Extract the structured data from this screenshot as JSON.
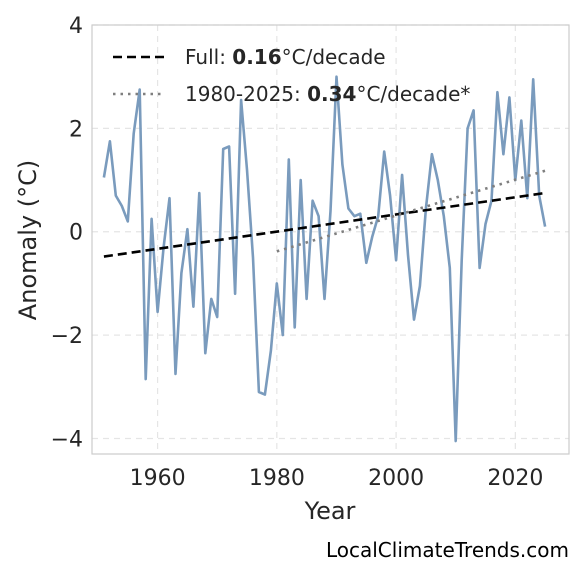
{
  "chart_data": {
    "type": "line",
    "xlabel": "Year",
    "ylabel": "Anomaly (°C)",
    "xlim": [
      1949,
      2029
    ],
    "ylim": [
      -4.3,
      4.0
    ],
    "x_ticks": [
      1960,
      1980,
      2000,
      2020
    ],
    "y_ticks": [
      -4,
      -2,
      0,
      2,
      4
    ],
    "y_tick_labels": [
      "−4",
      "−2",
      "0",
      "2",
      "4"
    ],
    "grid": true,
    "legend_position": "top-left",
    "colors": {
      "series": "#7a9bbd",
      "full_trend": "#000000",
      "recent_trend": "#7f7f7f",
      "grid": "#e5e5e5",
      "spine": "#cccccc"
    },
    "series": [
      {
        "x": [
          1951,
          1952,
          1953,
          1954,
          1955,
          1956,
          1957,
          1958,
          1959,
          1960,
          1961,
          1962,
          1963,
          1964,
          1965,
          1966,
          1967,
          1968,
          1969,
          1970,
          1971,
          1972,
          1973,
          1974,
          1975,
          1976,
          1977,
          1978,
          1979,
          1980,
          1981,
          1982,
          1983,
          1984,
          1985,
          1986,
          1987,
          1988,
          1989,
          1990,
          1991,
          1992,
          1993,
          1994,
          1995,
          1996,
          1997,
          1998,
          1999,
          2000,
          2001,
          2002,
          2003,
          2004,
          2005,
          2006,
          2007,
          2008,
          2009,
          2010,
          2011,
          2012,
          2013,
          2014,
          2015,
          2016,
          2017,
          2018,
          2019,
          2020,
          2021,
          2022,
          2023,
          2024,
          2025
        ],
        "values": [
          1.05,
          1.75,
          0.7,
          0.5,
          0.2,
          1.9,
          2.75,
          -2.85,
          0.25,
          -1.55,
          -0.3,
          0.65,
          -2.75,
          -0.8,
          0.05,
          -1.45,
          0.75,
          -2.35,
          -1.3,
          -1.65,
          1.6,
          1.65,
          -1.2,
          2.55,
          1.2,
          -0.5,
          -3.1,
          -3.15,
          -2.3,
          -1.0,
          -2.0,
          1.4,
          -1.85,
          1.0,
          -1.3,
          0.6,
          0.3,
          -1.3,
          0.4,
          3.0,
          1.3,
          0.45,
          0.3,
          0.35,
          -0.6,
          -0.1,
          0.3,
          1.55,
          0.7,
          -0.55,
          1.1,
          -0.45,
          -1.7,
          -1.05,
          0.45,
          1.5,
          1.0,
          0.3,
          -0.7,
          -4.05,
          -0.55,
          2.0,
          2.35,
          -0.7,
          0.15,
          0.6,
          2.7,
          1.5,
          2.6,
          1.0,
          2.15,
          0.65,
          2.95,
          0.7,
          0.1
        ]
      }
    ],
    "trends": [
      {
        "label_prefix": "Full: ",
        "label_value": "0.16",
        "label_suffix": "°C/decade",
        "style": "dashed",
        "x": [
          1951,
          2025
        ],
        "y": [
          -0.48,
          0.75
        ]
      },
      {
        "label_prefix": "1980-2025: ",
        "label_value": "0.34",
        "label_suffix": "°C/decade*",
        "style": "dotted",
        "x": [
          1980,
          2025
        ],
        "y": [
          -0.38,
          1.18
        ]
      }
    ]
  },
  "footer": {
    "credit": "LocalClimateTrends.com"
  }
}
